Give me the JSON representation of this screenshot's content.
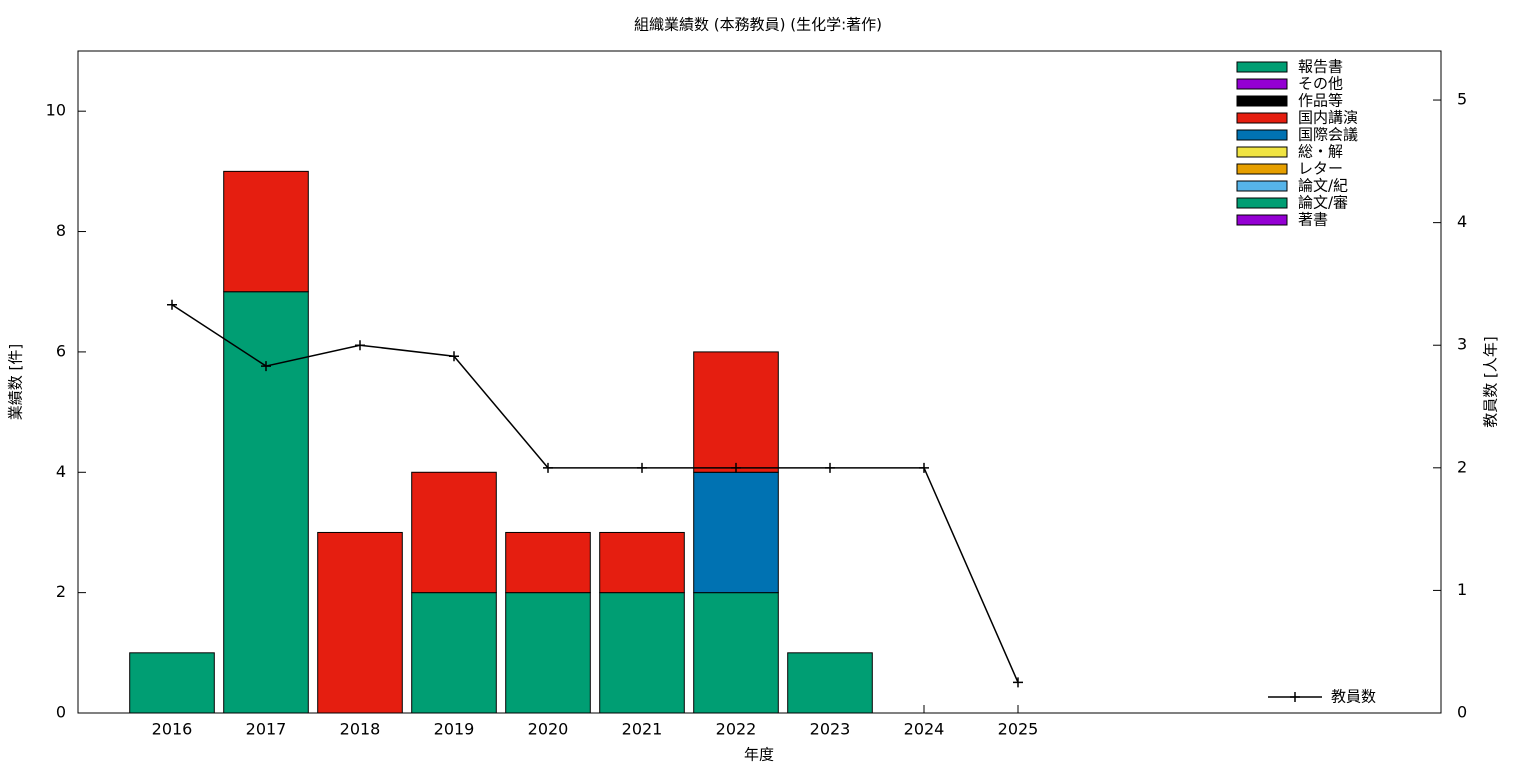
{
  "chart_data": {
    "type": "bar",
    "stacked": true,
    "title": "組織業績数 (本務教員) (生化学:著作)",
    "x_label": "年度",
    "y_label": "業績数 [件]",
    "y2_label": "教員数 [人年]",
    "x": [
      2016,
      2017,
      2018,
      2019,
      2020,
      2021,
      2022,
      2023,
      2024,
      2025
    ],
    "xlim": [
      2015,
      2029.5
    ],
    "xticks": [
      2016,
      2017,
      2018,
      2019,
      2020,
      2021,
      2022,
      2023,
      2024,
      2025
    ],
    "ylim": [
      0,
      11
    ],
    "yticks": [
      0,
      2,
      4,
      6,
      8,
      10
    ],
    "y2lim": [
      0,
      5.4
    ],
    "y2ticks": [
      0,
      1,
      2,
      3,
      4,
      5
    ],
    "legend": "upper right",
    "series": [
      {
        "name": "報告書",
        "color": "#009e73",
        "values": [
          0,
          0,
          0,
          0,
          0,
          0,
          0,
          0,
          0,
          0
        ]
      },
      {
        "name": "その他",
        "color": "#9400d3",
        "values": [
          0,
          0,
          0,
          0,
          0,
          0,
          0,
          0,
          0,
          0
        ]
      },
      {
        "name": "作品等",
        "color": "#000000",
        "values": [
          0,
          0,
          0,
          0,
          0,
          0,
          0,
          0,
          0,
          0
        ]
      },
      {
        "name": "国内講演",
        "color": "#e51e10",
        "values": [
          0,
          2,
          3,
          2,
          1,
          1,
          2,
          0,
          0,
          0
        ]
      },
      {
        "name": "国際会議",
        "color": "#0072b2",
        "values": [
          0,
          0,
          0,
          0,
          0,
          0,
          2,
          0,
          0,
          0
        ]
      },
      {
        "name": "総・解",
        "color": "#f0e442",
        "values": [
          0,
          0,
          0,
          0,
          0,
          0,
          0,
          0,
          0,
          0
        ]
      },
      {
        "name": "レター",
        "color": "#e69f00",
        "values": [
          0,
          0,
          0,
          0,
          0,
          0,
          0,
          0,
          0,
          0
        ]
      },
      {
        "name": "論文/紀",
        "color": "#56b4e9",
        "values": [
          0,
          0,
          0,
          0,
          0,
          0,
          0,
          0,
          0,
          0
        ]
      },
      {
        "name": "論文/審",
        "color": "#009e73",
        "values": [
          1,
          7,
          0,
          2,
          2,
          2,
          2,
          1,
          0,
          0
        ]
      },
      {
        "name": "著書",
        "color": "#9400d3",
        "values": [
          0,
          0,
          0,
          0,
          0,
          0,
          0,
          0,
          0,
          0
        ]
      },
      {
        "name": "教員数",
        "type": "line",
        "axis": "y2",
        "color": "#000000",
        "values": [
          3.33,
          2.83,
          3.0,
          2.91,
          2,
          2,
          2,
          2,
          2,
          0.25
        ]
      }
    ]
  }
}
